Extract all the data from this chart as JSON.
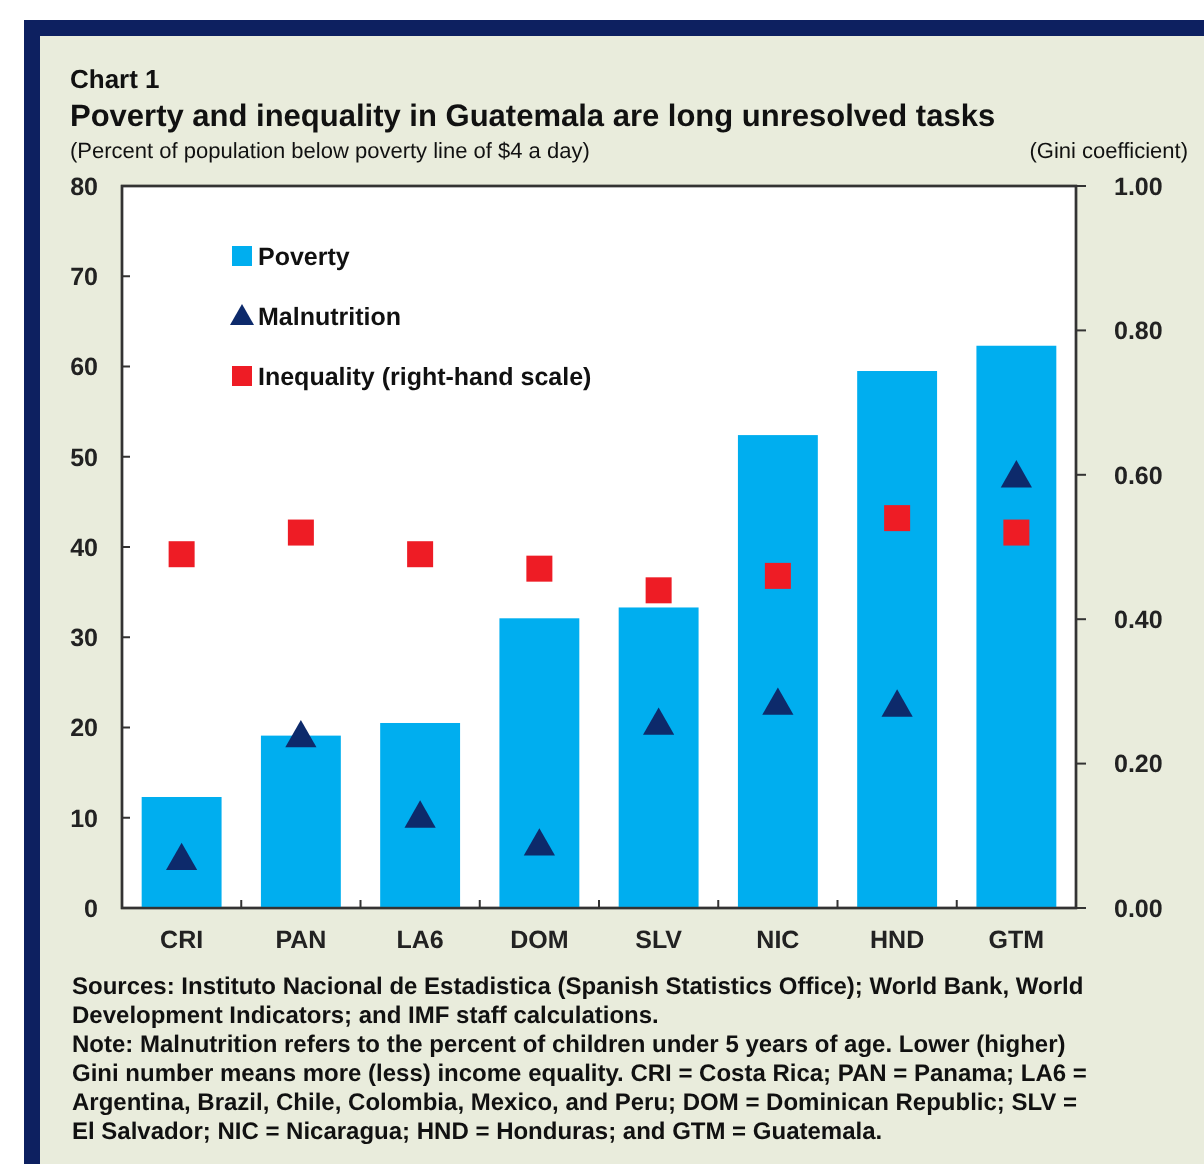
{
  "chart_data": {
    "type": "bar",
    "title": "Poverty and inequality in Guatemala are long unresolved tasks",
    "ylabel": "(Percent of population below poverty line of $4 a day)",
    "y2label": "(Gini coefficient)",
    "categories": [
      "CRI",
      "PAN",
      "LA6",
      "DOM",
      "SLV",
      "NIC",
      "HND",
      "GTM"
    ],
    "series": [
      {
        "name": "Poverty",
        "color": "#00aeef",
        "values": [
          12.3,
          19.1,
          20.5,
          32.1,
          33.3,
          52.4,
          59.5,
          62.3
        ]
      },
      {
        "name": "Malnutrition",
        "type": "scatter",
        "marker": "triangle",
        "color": "#0d2a6b",
        "values": [
          5.5,
          19.1,
          10.2,
          7.1,
          20.5,
          22.7,
          22.5,
          47.9
        ]
      },
      {
        "name": "Inequality (right-hand scale)",
        "type": "scatter",
        "marker": "square",
        "axis": "y2",
        "color": "#ee1c25",
        "values": [
          0.49,
          0.52,
          0.49,
          0.47,
          0.44,
          0.46,
          0.54,
          0.52
        ]
      }
    ],
    "ylim": [
      0,
      80
    ],
    "yticks": [
      0,
      10,
      20,
      30,
      40,
      50,
      60,
      70,
      80
    ],
    "y2lim": [
      0,
      1
    ],
    "y2ticks": [
      {
        "value": 0,
        "label": "0.00"
      },
      {
        "value": 0.2,
        "label": "0.20"
      },
      {
        "value": 0.4,
        "label": "0.40"
      },
      {
        "value": 0.6,
        "label": "0.60"
      },
      {
        "value": 0.8,
        "label": "0.80"
      },
      {
        "value": 1,
        "label": "1.00"
      }
    ],
    "grid": false,
    "legend": "top left",
    "annotations": [
      "Chart 1",
      "Sources: Instituto Nacional de Estadistica (Spanish Statistics Office); World Bank, World Development Indicators; and IMF staff calculations.",
      "Note: Malnutrition refers to the percent of children under 5 years of age. Lower (higher) Gini number means more (less) income equality. CRI = Costa Rica; PAN = Panama; LA6 = Argentina, Brazil, Chile, Colombia, Mexico, and Peru; DOM = Dominican Republic; SLV = El Salvador; NIC = Nicaragua; HND = Honduras; and GTM = Guatemala."
    ]
  }
}
